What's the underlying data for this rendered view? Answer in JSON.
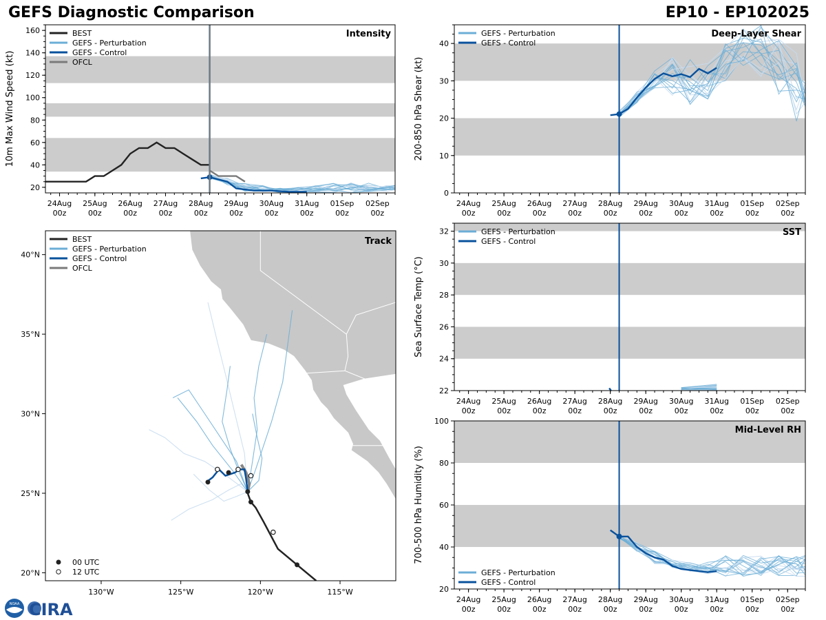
{
  "header": {
    "title": "GEFS Diagnostic Comparison",
    "storm": "EP10 - EP102025"
  },
  "colors": {
    "best": "#222222",
    "perturbation": "#6baed6",
    "control": "#08519c",
    "ofcl": "#7a7a7a",
    "band": "#cccccc",
    "land": "#c8c8c8"
  },
  "legend_labels": {
    "best": "BEST",
    "perturbation": "GEFS - Perturbation",
    "control": "GEFS - Control",
    "ofcl": "OFCL",
    "utc00": "00 UTC",
    "utc12": "12 UTC"
  },
  "time_ticks": [
    {
      "date": "24Aug",
      "hour": "00z"
    },
    {
      "date": "25Aug",
      "hour": "00z"
    },
    {
      "date": "26Aug",
      "hour": "00z"
    },
    {
      "date": "27Aug",
      "hour": "00z"
    },
    {
      "date": "28Aug",
      "hour": "00z"
    },
    {
      "date": "29Aug",
      "hour": "00z"
    },
    {
      "date": "30Aug",
      "hour": "00z"
    },
    {
      "date": "31Aug",
      "hour": "00z"
    },
    {
      "date": "01Sep",
      "hour": "00z"
    },
    {
      "date": "02Sep",
      "hour": "00z"
    }
  ],
  "logo": {
    "noaa": "NOAA",
    "cira": "CIRA"
  },
  "chart_data": [
    {
      "id": "intensity",
      "type": "line",
      "title": "Intensity",
      "xlabel": "",
      "ylabel": "10m Max Wind Speed (kt)",
      "x_range_days": [
        -0.4,
        9.5
      ],
      "ylim": [
        15,
        165
      ],
      "yticks": [
        20,
        40,
        60,
        80,
        100,
        120,
        140,
        160
      ],
      "bands": [
        [
          34,
          64
        ],
        [
          83,
          95
        ],
        [
          113,
          137
        ]
      ],
      "init_day": 4.25,
      "series": [
        {
          "name": "BEST",
          "x": [
            -0.4,
            0,
            0.5,
            0.75,
            1,
            1.25,
            1.5,
            1.75,
            2,
            2.25,
            2.5,
            2.75,
            3,
            3.25,
            3.5,
            3.75,
            4,
            4.25
          ],
          "y": [
            25,
            25,
            25,
            25,
            30,
            30,
            35,
            40,
            50,
            55,
            55,
            60,
            55,
            55,
            50,
            45,
            40,
            40
          ]
        },
        {
          "name": "GEFS - Control",
          "x": [
            4,
            4.25,
            4.5,
            4.75,
            5,
            5.25,
            5.5,
            6,
            6.5,
            7
          ],
          "y": [
            28,
            29,
            27,
            25,
            19,
            18,
            17,
            17,
            16,
            16
          ]
        },
        {
          "name": "OFCL",
          "x": [
            4.25,
            4.5,
            4.75,
            5,
            5.25
          ],
          "y": [
            35,
            30,
            30,
            30,
            25
          ]
        }
      ],
      "perturbation_ranges": {
        "x": [
          4.25,
          4.75,
          5.25,
          5.75,
          6.25,
          6.75,
          7.25,
          7.75,
          8.25,
          8.75,
          9.25,
          9.5
        ],
        "low": [
          28,
          22,
          16,
          16,
          15,
          15,
          15,
          15,
          15,
          16,
          16,
          16
        ],
        "high": [
          32,
          28,
          24,
          22,
          21,
          20,
          22,
          24,
          24,
          24,
          22,
          22
        ]
      }
    },
    {
      "id": "shear",
      "type": "line",
      "title": "Deep-Layer Shear",
      "xlabel": "",
      "ylabel": "200-850 hPa Shear (kt)",
      "x_range_days": [
        -0.4,
        9.5
      ],
      "ylim": [
        0,
        45
      ],
      "yticks": [
        0,
        10,
        20,
        30,
        40
      ],
      "bands": [
        [
          10,
          20
        ],
        [
          30,
          40
        ]
      ],
      "init_day": 4.25,
      "series": [
        {
          "name": "GEFS - Control",
          "x": [
            4,
            4.25,
            4.5,
            4.75,
            5,
            5.25,
            5.5,
            5.75,
            6,
            6.25,
            6.5,
            6.75,
            7
          ],
          "y": [
            20.8,
            21.1,
            22.5,
            25.5,
            28.2,
            30.5,
            32,
            31.2,
            31.8,
            31,
            33.2,
            32,
            33.5
          ]
        }
      ],
      "perturbation_ranges": {
        "x": [
          4.25,
          4.75,
          5.25,
          5.75,
          6.25,
          6.75,
          7.25,
          7.75,
          8.25,
          8.75,
          9.25,
          9.5
        ],
        "low": [
          20,
          24,
          28,
          26,
          23,
          25,
          30,
          34,
          30,
          26,
          17,
          22
        ],
        "high": [
          22,
          27,
          33,
          37,
          36,
          36,
          40,
          45,
          45,
          43,
          38,
          30
        ]
      }
    },
    {
      "id": "sst",
      "type": "line",
      "title": "SST",
      "xlabel": "",
      "ylabel": "Sea Surface Temp (°C)",
      "x_range_days": [
        -0.4,
        9.5
      ],
      "ylim": [
        22,
        32.5
      ],
      "yticks": [
        22,
        24,
        26,
        28,
        30,
        32
      ],
      "bands": [
        [
          24,
          26
        ],
        [
          28,
          30
        ],
        [
          32,
          32.5
        ]
      ],
      "init_day": 4.25,
      "series": [
        {
          "name": "GEFS - Control",
          "x": [
            3.97,
            4.02
          ],
          "y": [
            22.15,
            22.0
          ]
        }
      ],
      "perturbation_ranges": {
        "x": [
          6,
          7
        ],
        "low": [
          22,
          22
        ],
        "high": [
          22.2,
          22.4
        ]
      }
    },
    {
      "id": "rh",
      "type": "line",
      "title": "Mid-Level RH",
      "xlabel": "",
      "ylabel": "700-500 hPa Humidity (%)",
      "x_range_days": [
        -0.4,
        9.5
      ],
      "ylim": [
        20,
        100
      ],
      "yticks": [
        20,
        40,
        60,
        80,
        100
      ],
      "bands": [
        [
          40,
          60
        ],
        [
          80,
          100
        ]
      ],
      "init_day": 4.25,
      "series": [
        {
          "name": "GEFS - Control",
          "x": [
            4,
            4.25,
            4.5,
            4.75,
            5,
            5.25,
            5.5,
            5.75,
            6,
            6.25,
            6.5,
            6.75,
            7
          ],
          "y": [
            48,
            45,
            45,
            40,
            37,
            35,
            34,
            31,
            29.5,
            29,
            28.5,
            28,
            28.5
          ]
        }
      ],
      "perturbation_ranges": {
        "x": [
          4.25,
          4.75,
          5.25,
          5.75,
          6.25,
          6.75,
          7.25,
          7.75,
          8.25,
          8.75,
          9.25,
          9.5
        ],
        "low": [
          44,
          38,
          32,
          30,
          28,
          27,
          26,
          26,
          26,
          26,
          26,
          26
        ],
        "high": [
          46,
          42,
          38,
          34,
          33,
          34,
          36,
          36,
          36,
          36,
          36,
          36
        ]
      }
    },
    {
      "id": "track",
      "type": "scatter",
      "title": "Track",
      "xlabel": "",
      "ylabel": "",
      "lon_range": [
        -133.5,
        -111.5
      ],
      "lat_range": [
        19.5,
        41.5
      ],
      "lon_ticks": [
        {
          "v": -130,
          "label": "130°W"
        },
        {
          "v": -125,
          "label": "125°W"
        },
        {
          "v": -120,
          "label": "120°W"
        },
        {
          "v": -115,
          "label": "115°W"
        }
      ],
      "lat_ticks": [
        {
          "v": 20,
          "label": "20°N"
        },
        {
          "v": 25,
          "label": "25°N"
        },
        {
          "v": 30,
          "label": "30°N"
        },
        {
          "v": 35,
          "label": "35°N"
        },
        {
          "v": 40,
          "label": "40°N"
        }
      ],
      "best_track": {
        "lon": [
          -116.5,
          -117.7,
          -118.9,
          -119.8,
          -120.3,
          -120.6,
          -120.8
        ],
        "lat": [
          19.5,
          20.5,
          21.5,
          23.2,
          24.1,
          24.45,
          25.0
        ]
      },
      "best_00utc": [
        {
          "lon": -117.7,
          "lat": 20.5
        },
        {
          "lon": -120.6,
          "lat": 24.45
        }
      ],
      "best_12utc": [
        {
          "lon": -119.2,
          "lat": 22.55
        }
      ],
      "control_track": {
        "lon": [
          -120.8,
          -120.9,
          -121,
          -121.3,
          -121.6,
          -121.9,
          -122.2,
          -122.6,
          -123,
          -123.4
        ],
        "lat": [
          25.1,
          25.9,
          26.5,
          26.5,
          26.3,
          26.2,
          26.1,
          26.5,
          26.0,
          25.7
        ]
      },
      "control_00utc": [
        {
          "lon": -120.8,
          "lat": 25.1
        },
        {
          "lon": -122.0,
          "lat": 26.3
        },
        {
          "lon": -123.3,
          "lat": 25.7
        }
      ],
      "control_12utc": [
        {
          "lon": -120.6,
          "lat": 26.1
        },
        {
          "lon": -121.4,
          "lat": 26.5
        },
        {
          "lon": -122.7,
          "lat": 26.5
        }
      ],
      "ofcl_track": {
        "lon": [
          -120.8,
          -120.7,
          -120.9,
          -121.2
        ],
        "lat": [
          25.0,
          25.6,
          26.3,
          26.8
        ]
      },
      "perturbation_tracks": [
        {
          "lon": [
            -120.8,
            -121.2,
            -122,
            -123,
            -124.5,
            -125.6
          ],
          "lat": [
            25.1,
            25.6,
            25.2,
            24.6,
            24.0,
            23.3
          ]
        },
        {
          "lon": [
            -120.8,
            -120.5,
            -120.2,
            -120.4,
            -120.1,
            -119.6
          ],
          "lat": [
            25.1,
            27,
            29,
            31,
            33,
            35
          ]
        },
        {
          "lon": [
            -120.8,
            -121.5,
            -122.5,
            -123.5,
            -124.5,
            -125.5
          ],
          "lat": [
            25.1,
            27,
            28.5,
            30,
            31.5,
            31
          ]
        },
        {
          "lon": [
            -120.8,
            -121,
            -121.6,
            -122.2,
            -122.7,
            -123.3
          ],
          "lat": [
            25.1,
            27.5,
            30,
            32.5,
            34.5,
            37
          ]
        },
        {
          "lon": [
            -120.8,
            -120.3,
            -119.8,
            -119.3,
            -118.6,
            -118.0
          ],
          "lat": [
            25.1,
            26.5,
            28,
            29.5,
            32,
            36.5
          ]
        },
        {
          "lon": [
            -120.8,
            -121.8,
            -123,
            -124,
            -124.8,
            -125.2
          ],
          "lat": [
            25.1,
            26.5,
            28,
            29.5,
            30.5,
            31
          ]
        },
        {
          "lon": [
            -120.8,
            -121.5,
            -122.3,
            -123.2,
            -124.2
          ],
          "lat": [
            25.1,
            24.8,
            24.5,
            25.2,
            26.2
          ]
        },
        {
          "lon": [
            -120.8,
            -121.4,
            -121.9,
            -122.4,
            -122.1,
            -121.9
          ],
          "lat": [
            25.1,
            26.5,
            27.8,
            29.5,
            31.5,
            33
          ]
        },
        {
          "lon": [
            -120.8,
            -120.1,
            -119.9,
            -120.2,
            -120.5
          ],
          "lat": [
            25.1,
            25.8,
            27.2,
            28.5,
            30
          ]
        },
        {
          "lon": [
            -120.8,
            -122,
            -123.5,
            -124.8,
            -126,
            -127
          ],
          "lat": [
            25.1,
            26,
            27,
            27.5,
            28.5,
            29
          ]
        }
      ]
    }
  ]
}
